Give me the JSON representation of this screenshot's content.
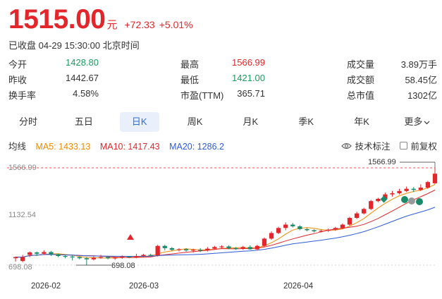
{
  "quote": {
    "price": "1515.00",
    "unit": "元",
    "change": "+72.33",
    "change_pct": "+5.01%",
    "status": "已收盘 04-29 15:30:00 北京时间"
  },
  "stats": [
    [
      {
        "label": "今开",
        "value": "1428.80",
        "color": "green"
      },
      {
        "label": "最高",
        "value": "1566.99",
        "color": "red"
      },
      {
        "label": "成交量",
        "value": "3.89万手",
        "color": ""
      }
    ],
    [
      {
        "label": "昨收",
        "value": "1442.67",
        "color": ""
      },
      {
        "label": "最低",
        "value": "1421.00",
        "color": "green"
      },
      {
        "label": "成交额",
        "value": "58.45亿",
        "color": ""
      }
    ],
    [
      {
        "label": "换手率",
        "value": "4.58%",
        "color": ""
      },
      {
        "label": "市盈(TTM)",
        "value": "365.71",
        "color": ""
      },
      {
        "label": "总市值",
        "value": "1302亿",
        "color": ""
      }
    ]
  ],
  "tabs": [
    "分时",
    "五日",
    "日K",
    "周K",
    "月K",
    "季K",
    "年K",
    "更多"
  ],
  "active_tab": "日K",
  "ma": {
    "title": "均线",
    "ma5": "MA5: 1433.13",
    "ma10": "MA10: 1417.43",
    "ma20": "MA20: 1286.2",
    "tech_label": "技术标注",
    "fuquan_label": "前复权"
  },
  "colors": {
    "up": "#e3262b",
    "down": "#1a8a6a",
    "ma5": "#f08c00",
    "ma10": "#e3262b",
    "ma20": "#2e5bd8",
    "accent": "#2a6fdb"
  },
  "chart_data": {
    "type": "candlestick",
    "y_ticks": [
      "1566.99",
      "1132.54",
      "698.08"
    ],
    "x_ticks": [
      "2026-02",
      "2026-03",
      "2026-04"
    ],
    "high_label": "1566.99",
    "low_label": "698.08",
    "ylim": [
      698.08,
      1566.99
    ],
    "candles": [
      [
        760,
        770,
        730,
        775
      ],
      [
        735,
        770,
        725,
        790
      ],
      [
        790,
        812,
        770,
        820
      ],
      [
        812,
        800,
        780,
        820
      ],
      [
        800,
        815,
        790,
        830
      ],
      [
        815,
        795,
        780,
        825
      ],
      [
        795,
        780,
        770,
        800
      ],
      [
        780,
        775,
        760,
        790
      ],
      [
        775,
        770,
        740,
        785
      ],
      [
        770,
        760,
        750,
        775
      ],
      [
        760,
        750,
        698,
        770
      ],
      [
        750,
        765,
        740,
        775
      ],
      [
        765,
        770,
        755,
        790
      ],
      [
        770,
        760,
        750,
        780
      ],
      [
        760,
        765,
        745,
        775
      ],
      [
        765,
        775,
        755,
        785
      ],
      [
        775,
        770,
        760,
        780
      ],
      [
        770,
        780,
        760,
        800
      ],
      [
        780,
        790,
        770,
        800
      ],
      [
        790,
        785,
        775,
        800
      ],
      [
        785,
        870,
        775,
        880
      ],
      [
        870,
        850,
        830,
        880
      ],
      [
        850,
        835,
        825,
        860
      ],
      [
        835,
        840,
        820,
        850
      ],
      [
        840,
        830,
        820,
        850
      ],
      [
        830,
        835,
        810,
        845
      ],
      [
        835,
        830,
        815,
        850
      ],
      [
        830,
        845,
        820,
        860
      ],
      [
        845,
        860,
        835,
        870
      ],
      [
        860,
        865,
        850,
        875
      ],
      [
        865,
        850,
        840,
        875
      ],
      [
        850,
        845,
        835,
        860
      ],
      [
        845,
        860,
        835,
        870
      ],
      [
        860,
        840,
        835,
        875
      ],
      [
        840,
        870,
        830,
        880
      ],
      [
        870,
        935,
        860,
        945
      ],
      [
        935,
        985,
        925,
        1000
      ],
      [
        985,
        1030,
        975,
        1040
      ],
      [
        1030,
        1060,
        1010,
        1080
      ],
      [
        1060,
        1045,
        1035,
        1075
      ],
      [
        1045,
        1020,
        1010,
        1055
      ],
      [
        1020,
        1010,
        1000,
        1030
      ],
      [
        1010,
        1000,
        990,
        1020
      ],
      [
        1000,
        1005,
        990,
        1015
      ],
      [
        1005,
        1015,
        995,
        1025
      ],
      [
        1015,
        1030,
        1005,
        1040
      ],
      [
        1030,
        1060,
        1020,
        1070
      ],
      [
        1060,
        1120,
        1050,
        1130
      ],
      [
        1120,
        1160,
        1110,
        1175
      ],
      [
        1160,
        1200,
        1150,
        1210
      ],
      [
        1200,
        1270,
        1190,
        1280
      ],
      [
        1270,
        1290,
        1260,
        1300
      ],
      [
        1290,
        1330,
        1280,
        1345
      ],
      [
        1330,
        1340,
        1310,
        1360
      ],
      [
        1340,
        1360,
        1330,
        1380
      ],
      [
        1360,
        1380,
        1350,
        1400
      ],
      [
        1380,
        1370,
        1350,
        1395
      ],
      [
        1370,
        1390,
        1360,
        1420
      ],
      [
        1390,
        1440,
        1380,
        1450
      ],
      [
        1429,
        1515,
        1421,
        1567
      ]
    ]
  }
}
